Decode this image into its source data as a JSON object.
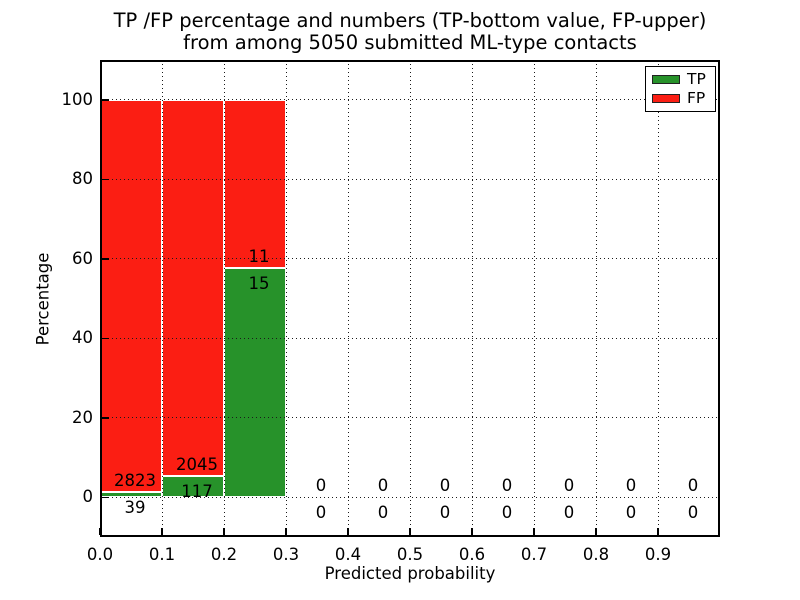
{
  "title": {
    "line1": "TP /FP percentage and numbers (TP-bottom value, FP-upper)",
    "line2": "from among 5050 submitted ML-type contacts"
  },
  "axes": {
    "xlabel": "Predicted probability",
    "ylabel": "Percentage",
    "xlim": [
      0,
      1
    ],
    "ylim": [
      -10,
      110
    ],
    "xticks": [
      {
        "value": 0.0,
        "label": "0.0"
      },
      {
        "value": 0.1,
        "label": "0.1"
      },
      {
        "value": 0.2,
        "label": "0.2"
      },
      {
        "value": 0.3,
        "label": "0.3"
      },
      {
        "value": 0.4,
        "label": "0.4"
      },
      {
        "value": 0.5,
        "label": "0.5"
      },
      {
        "value": 0.6,
        "label": "0.6"
      },
      {
        "value": 0.7,
        "label": "0.7"
      },
      {
        "value": 0.8,
        "label": "0.8"
      },
      {
        "value": 0.9,
        "label": "0.9"
      }
    ],
    "yticks": [
      {
        "value": 0,
        "label": "0"
      },
      {
        "value": 20,
        "label": "20"
      },
      {
        "value": 40,
        "label": "40"
      },
      {
        "value": 60,
        "label": "60"
      },
      {
        "value": 80,
        "label": "80"
      },
      {
        "value": 100,
        "label": "100"
      }
    ],
    "grid_style": "dotted"
  },
  "legend": {
    "position": "upper right",
    "items": [
      {
        "label": "TP",
        "color": "#27922a"
      },
      {
        "label": "FP",
        "color": "#fb1e13"
      }
    ]
  },
  "colors": {
    "tp": "#27922a",
    "fp": "#fb1e13",
    "text": "#000000",
    "background": "#ffffff"
  },
  "chart_data": {
    "type": "bar",
    "stacked": true,
    "bar_heights_are_percent_of_bin_total": true,
    "title": "TP /FP percentage and numbers (TP-bottom value, FP-upper) from among 5050 submitted ML-type contacts",
    "xlabel": "Predicted probability",
    "ylabel": "Percentage",
    "total_submitted_contacts": 5050,
    "bin_width": 0.1,
    "xlim": [
      0,
      1
    ],
    "ylim": [
      -10,
      110
    ],
    "grid": true,
    "legend_position": "upper right",
    "series": [
      {
        "name": "TP",
        "color": "#27922a"
      },
      {
        "name": "FP",
        "color": "#fb1e13"
      }
    ],
    "bins": [
      {
        "x0": 0.0,
        "x1": 0.1,
        "tp": 39,
        "fp": 2823,
        "tp_percent": 1.36,
        "fp_percent": 98.64
      },
      {
        "x0": 0.1,
        "x1": 0.2,
        "tp": 117,
        "fp": 2045,
        "tp_percent": 5.41,
        "fp_percent": 94.59
      },
      {
        "x0": 0.2,
        "x1": 0.3,
        "tp": 15,
        "fp": 11,
        "tp_percent": 57.69,
        "fp_percent": 42.31
      },
      {
        "x0": 0.3,
        "x1": 0.4,
        "tp": 0,
        "fp": 0
      },
      {
        "x0": 0.4,
        "x1": 0.5,
        "tp": 0,
        "fp": 0
      },
      {
        "x0": 0.5,
        "x1": 0.6,
        "tp": 0,
        "fp": 0
      },
      {
        "x0": 0.6,
        "x1": 0.7,
        "tp": 0,
        "fp": 0
      },
      {
        "x0": 0.7,
        "x1": 0.8,
        "tp": 0,
        "fp": 0
      },
      {
        "x0": 0.8,
        "x1": 0.9,
        "tp": 0,
        "fp": 0
      },
      {
        "x0": 0.9,
        "x1": 1.0,
        "tp": 0,
        "fp": 0
      }
    ]
  }
}
